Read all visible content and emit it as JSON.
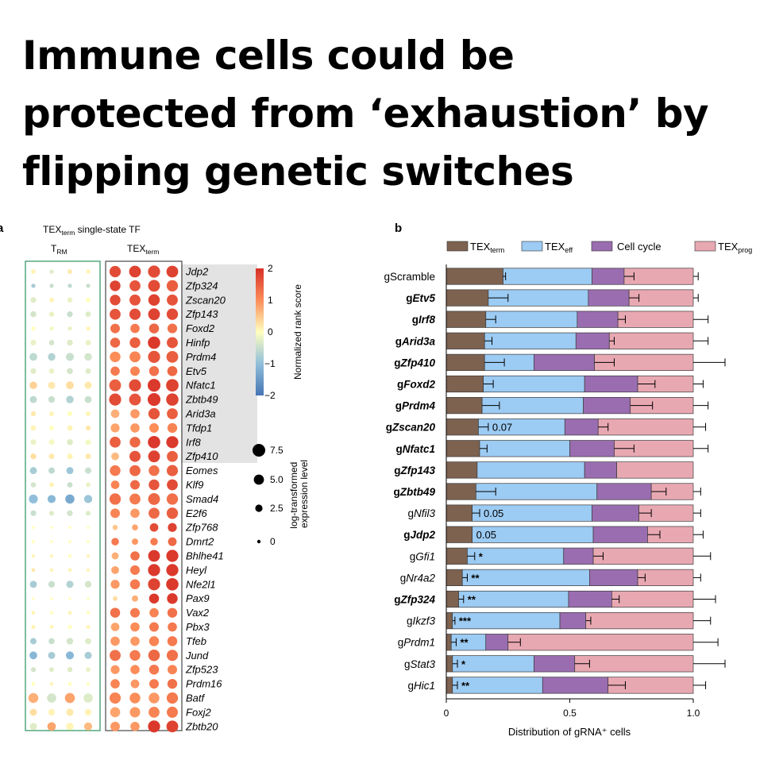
{
  "headline": {
    "line1": "Immune cells could be",
    "line2": "protected from ‘exhaustion’ by",
    "line3": "flipping genetic switches"
  },
  "panel_a": {
    "label": "a",
    "title_prefix": "TEX",
    "title_sub": "term",
    "title_suffix": " single-state TF",
    "col_group1_main": "T",
    "col_group1_sub": "RM",
    "col_group2_main": "TEX",
    "col_group2_sub": "term",
    "colorbar_title": "Normalized rank score",
    "colorbar_ticks": [
      "2",
      "1",
      "0",
      "−1",
      "−2"
    ],
    "size_title_line1": "log-transformed",
    "size_title_line2": "expression level",
    "size_ticks": [
      "7.5",
      "5.0",
      "2.5",
      "0"
    ]
  },
  "panel_b": {
    "label": "b",
    "legend": [
      {
        "main": "TEX",
        "sub": "term",
        "color": "#7d6250"
      },
      {
        "main": "TEX",
        "sub": "eff",
        "color": "#9ccbf3"
      },
      {
        "main": "Cell cycle",
        "sub": "",
        "color": "#9a6db0"
      },
      {
        "main": "TEX",
        "sub": "prog",
        "color": "#e8a8b2"
      }
    ],
    "x_ticks": [
      "0",
      "0.5",
      "1.0"
    ],
    "xlabel": "Distribution of gRNA⁺ cells"
  },
  "chart_data": [
    {
      "type": "heatmap",
      "title": "TEXterm single-state TF",
      "columns": [
        "TRM",
        "TRM",
        "TRM",
        "TRM",
        "TEXterm",
        "TEXterm",
        "TEXterm",
        "TEXterm"
      ],
      "rows": [
        "Jdp2",
        "Zfp324",
        "Zscan20",
        "Zfp143",
        "Foxd2",
        "Hinfp",
        "Prdm4",
        "Etv5",
        "Nfatc1",
        "Zbtb49",
        "Arid3a",
        "Tfdp1",
        "Irf8",
        "Zfp410",
        "Eomes",
        "Klf9",
        "Smad4",
        "E2f6",
        "Zfp768",
        "Dmrt2",
        "Bhlhe41",
        "Heyl",
        "Nfe2l1",
        "Pax9",
        "Vax2",
        "Pbx3",
        "Tfeb",
        "Jund",
        "Zfp523",
        "Prdm16",
        "Batf",
        "Foxj2",
        "Zbtb20"
      ],
      "highlighted_rows": [
        "Jdp2",
        "Zfp324",
        "Zscan20",
        "Zfp143",
        "Foxd2",
        "Hinfp",
        "Prdm4",
        "Etv5",
        "Nfatc1",
        "Zbtb49",
        "Arid3a",
        "Tfdp1",
        "Irf8",
        "Zfp410"
      ],
      "score_range": [
        -2,
        2
      ],
      "size_range": [
        0,
        7.5
      ],
      "score": [
        [
          0.1,
          -0.3,
          0.2,
          0.1,
          1.7,
          1.8,
          1.7,
          1.8
        ],
        [
          -0.8,
          -0.5,
          -0.6,
          -0.5,
          1.8,
          1.6,
          1.7,
          1.5
        ],
        [
          -0.3,
          0.1,
          -0.2,
          0.0,
          1.7,
          1.6,
          1.8,
          1.6
        ],
        [
          -0.4,
          -0.2,
          -0.5,
          -0.3,
          1.6,
          1.7,
          1.8,
          1.7
        ],
        [
          0.0,
          -0.1,
          -0.2,
          0.1,
          1.3,
          1.2,
          1.4,
          1.3
        ],
        [
          -0.2,
          -0.4,
          -0.3,
          -0.2,
          1.4,
          1.5,
          1.9,
          1.6
        ],
        [
          -0.6,
          -0.7,
          -0.5,
          -0.4,
          1.0,
          1.1,
          1.6,
          1.5
        ],
        [
          -0.3,
          -0.2,
          -0.4,
          -0.3,
          1.2,
          1.1,
          1.3,
          1.4
        ],
        [
          0.4,
          0.2,
          0.3,
          0.2,
          1.5,
          1.7,
          1.9,
          1.8
        ],
        [
          -0.6,
          -0.5,
          -0.7,
          -0.5,
          1.7,
          1.6,
          1.9,
          1.8
        ],
        [
          0.2,
          0.1,
          0.0,
          0.1,
          0.7,
          0.9,
          1.6,
          1.5
        ],
        [
          0.1,
          0.0,
          0.1,
          0.2,
          0.8,
          0.9,
          1.0,
          1.1
        ],
        [
          -0.2,
          -0.1,
          -0.3,
          -0.1,
          1.5,
          1.4,
          1.9,
          1.9
        ],
        [
          0.3,
          0.2,
          0.1,
          0.2,
          0.6,
          1.6,
          1.8,
          1.5
        ],
        [
          -0.8,
          -0.6,
          -0.9,
          -0.5,
          1.2,
          1.4,
          1.3,
          1.5
        ],
        [
          -0.4,
          0.1,
          -0.5,
          -0.2,
          1.1,
          1.4,
          1.6,
          1.7
        ],
        [
          -1.0,
          -1.1,
          -1.3,
          -0.9,
          1.3,
          1.2,
          1.4,
          1.3
        ],
        [
          -0.5,
          -0.3,
          -0.4,
          -0.3,
          1.1,
          0.9,
          1.4,
          1.5
        ],
        [
          0.0,
          0.0,
          0.0,
          0.0,
          0.5,
          0.8,
          1.7,
          1.8
        ],
        [
          0.0,
          0.0,
          0.0,
          0.0,
          1.2,
          0.9,
          1.2,
          1.4
        ],
        [
          0.1,
          0.1,
          0.0,
          0.1,
          0.7,
          1.3,
          1.9,
          1.9
        ],
        [
          0.2,
          0.1,
          0.1,
          0.1,
          0.8,
          1.2,
          1.9,
          1.9
        ],
        [
          -0.8,
          -0.5,
          -0.7,
          -0.4,
          0.9,
          1.2,
          1.8,
          1.9
        ],
        [
          0.0,
          0.0,
          0.0,
          0.0,
          0.3,
          0.7,
          1.9,
          1.9
        ],
        [
          0.1,
          0.0,
          0.1,
          0.0,
          1.3,
          1.2,
          1.1,
          1.3
        ],
        [
          0.1,
          0.1,
          0.0,
          0.1,
          0.8,
          1.0,
          1.2,
          1.2
        ],
        [
          -0.8,
          -0.5,
          -0.4,
          -0.3,
          0.9,
          0.9,
          1.1,
          1.2
        ],
        [
          -1.1,
          -0.8,
          -1.1,
          -0.8,
          1.3,
          1.2,
          1.4,
          1.3
        ],
        [
          -0.4,
          -0.3,
          -0.3,
          -0.2,
          0.9,
          1.0,
          1.2,
          1.1
        ],
        [
          0.0,
          0.1,
          0.0,
          0.0,
          1.1,
          0.9,
          1.2,
          1.3
        ],
        [
          0.7,
          -0.4,
          0.8,
          -0.3,
          1.1,
          1.0,
          0.9,
          1.2
        ],
        [
          0.3,
          0.1,
          0.2,
          0.1,
          0.8,
          0.9,
          1.1,
          1.2
        ],
        [
          -0.3,
          0.8,
          0.1,
          0.6,
          0.9,
          0.9,
          1.9,
          1.8
        ]
      ],
      "expression": [
        [
          1.8,
          1.5,
          1.8,
          1.6,
          6.5,
          6.8,
          7.0,
          6.8
        ],
        [
          1.5,
          1.5,
          1.5,
          1.5,
          6.0,
          6.2,
          6.8,
          6.5
        ],
        [
          2.5,
          1.8,
          2.2,
          2.0,
          6.0,
          6.3,
          6.6,
          6.3
        ],
        [
          2.8,
          2.2,
          2.6,
          2.4,
          6.2,
          6.4,
          6.8,
          6.5
        ],
        [
          1.5,
          1.5,
          1.5,
          1.5,
          5.2,
          5.0,
          5.5,
          5.3
        ],
        [
          2.6,
          2.3,
          2.7,
          2.4,
          5.5,
          6.0,
          7.2,
          6.3
        ],
        [
          4.0,
          3.8,
          4.2,
          3.8,
          6.0,
          6.2,
          7.0,
          6.8
        ],
        [
          2.5,
          2.2,
          2.8,
          2.4,
          5.0,
          5.2,
          5.5,
          5.6
        ],
        [
          3.8,
          3.5,
          4.0,
          3.6,
          6.8,
          7.0,
          7.5,
          7.3
        ],
        [
          3.5,
          3.2,
          3.8,
          3.4,
          7.0,
          6.8,
          7.5,
          7.2
        ],
        [
          2.0,
          1.8,
          2.0,
          1.8,
          4.5,
          5.0,
          6.5,
          6.2
        ],
        [
          2.2,
          2.0,
          2.3,
          2.1,
          4.8,
          5.0,
          5.2,
          5.4
        ],
        [
          2.5,
          2.5,
          2.8,
          2.5,
          6.2,
          6.0,
          7.2,
          7.0
        ],
        [
          2.6,
          2.4,
          2.5,
          2.4,
          4.0,
          6.3,
          6.8,
          6.2
        ],
        [
          3.5,
          3.0,
          3.5,
          3.0,
          6.0,
          6.2,
          6.0,
          6.4
        ],
        [
          2.2,
          1.8,
          2.3,
          1.8,
          4.5,
          5.2,
          6.0,
          6.2
        ],
        [
          4.8,
          4.2,
          5.0,
          4.3,
          6.5,
          6.2,
          6.8,
          6.5
        ],
        [
          2.5,
          2.0,
          2.6,
          2.0,
          5.2,
          5.0,
          6.2,
          6.5
        ],
        [
          0.6,
          0.5,
          0.6,
          0.5,
          2.2,
          2.8,
          4.5,
          4.8
        ],
        [
          0.8,
          0.6,
          0.8,
          0.6,
          3.8,
          3.0,
          3.8,
          4.6
        ],
        [
          1.0,
          0.8,
          1.0,
          0.9,
          3.5,
          5.0,
          6.8,
          7.0
        ],
        [
          1.2,
          1.0,
          1.2,
          1.0,
          4.0,
          5.2,
          7.0,
          7.0
        ],
        [
          3.5,
          3.2,
          3.6,
          3.2,
          4.8,
          5.5,
          7.0,
          7.2
        ],
        [
          0.5,
          0.5,
          0.5,
          0.5,
          1.8,
          3.0,
          5.5,
          6.0
        ],
        [
          1.2,
          1.0,
          1.3,
          1.0,
          5.5,
          5.2,
          5.0,
          5.4
        ],
        [
          1.5,
          1.3,
          1.6,
          1.4,
          4.5,
          5.0,
          5.2,
          5.0
        ],
        [
          3.0,
          2.8,
          3.2,
          2.8,
          5.0,
          5.0,
          5.5,
          5.5
        ],
        [
          4.0,
          3.5,
          4.2,
          3.6,
          6.3,
          6.0,
          6.6,
          6.4
        ],
        [
          2.0,
          1.8,
          2.2,
          1.8,
          4.8,
          5.0,
          5.5,
          5.2
        ],
        [
          1.2,
          1.0,
          1.2,
          1.0,
          5.0,
          4.6,
          5.2,
          5.4
        ],
        [
          5.5,
          5.0,
          5.6,
          5.0,
          6.4,
          6.0,
          6.0,
          6.5
        ],
        [
          3.5,
          3.2,
          3.6,
          3.2,
          5.6,
          5.8,
          6.2,
          6.3
        ],
        [
          3.5,
          4.5,
          3.8,
          4.2,
          5.2,
          5.0,
          7.0,
          6.8
        ]
      ]
    },
    {
      "type": "bar",
      "orientation": "horizontal",
      "stacked": true,
      "xlabel": "Distribution of gRNA⁺ cells",
      "xlim": [
        0,
        1.0
      ],
      "legend_position": "top",
      "categories": [
        "gScramble",
        "gEtv5",
        "gIrf8",
        "gArid3a",
        "gZfp410",
        "gFoxd2",
        "gPrdm4",
        "gZscan20",
        "gNfatc1",
        "gZfp143",
        "gZbtb49",
        "gNfil3",
        "gJdp2",
        "gGfi1",
        "gNr4a2",
        "gZfp324",
        "gIkzf3",
        "gPrdm1",
        "gStat3",
        "gHic1"
      ],
      "bold_categories": [
        "gEtv5",
        "gIrf8",
        "gArid3a",
        "gZfp410",
        "gFoxd2",
        "gPrdm4",
        "gZscan20",
        "gNfatc1",
        "gZfp143",
        "gZbtb49",
        "gJdp2",
        "gZfp324"
      ],
      "series": [
        {
          "name": "TEXterm",
          "color": "#7d6250",
          "values": [
            0.23,
            0.17,
            0.16,
            0.155,
            0.155,
            0.15,
            0.145,
            0.13,
            0.135,
            0.125,
            0.12,
            0.105,
            0.105,
            0.085,
            0.065,
            0.05,
            0.025,
            0.02,
            0.025,
            0.025
          ]
        },
        {
          "name": "TEXeff",
          "color": "#9ccbf3",
          "values": [
            0.36,
            0.405,
            0.37,
            0.37,
            0.2,
            0.41,
            0.41,
            0.35,
            0.365,
            0.435,
            0.49,
            0.485,
            0.49,
            0.39,
            0.515,
            0.445,
            0.435,
            0.14,
            0.33,
            0.365
          ]
        },
        {
          "name": "Cell cycle",
          "color": "#9a6db0",
          "values": [
            0.13,
            0.165,
            0.165,
            0.135,
            0.245,
            0.215,
            0.19,
            0.135,
            0.18,
            0.13,
            0.22,
            0.19,
            0.22,
            0.12,
            0.195,
            0.175,
            0.105,
            0.09,
            0.165,
            0.265
          ]
        },
        {
          "name": "TEXprog",
          "color": "#e8a8b2",
          "values": [
            0.28,
            0.26,
            0.305,
            0.34,
            0.4,
            0.225,
            0.255,
            0.385,
            0.32,
            0.31,
            0.17,
            0.22,
            0.185,
            0.405,
            0.225,
            0.33,
            0.435,
            0.75,
            0.48,
            0.345
          ]
        }
      ],
      "error_bars": {
        "TEXterm": [
          0.01,
          0.08,
          0.04,
          0.03,
          0.08,
          0.04,
          0.07,
          0.04,
          0.03,
          0.0,
          0.08,
          0.03,
          0.0,
          0.03,
          0.02,
          0.02,
          0.01,
          0.02,
          0.02,
          0.02
        ],
        "Cell cycle": [
          0.04,
          0.04,
          0.03,
          0.02,
          0.08,
          0.07,
          0.09,
          0.04,
          0.08,
          0.0,
          0.06,
          0.05,
          0.05,
          0.04,
          0.03,
          0.03,
          0.02,
          0.05,
          0.06,
          0.07
        ],
        "TEXprog": [
          0.02,
          0.02,
          0.06,
          0.06,
          0.17,
          0.04,
          0.06,
          0.05,
          0.06,
          0.0,
          0.03,
          0.03,
          0.04,
          0.07,
          0.03,
          0.09,
          0.07,
          0.1,
          0.13,
          0.05
        ]
      },
      "annotations": [
        "",
        "",
        "",
        "",
        "",
        "",
        "",
        "0.07",
        "",
        "",
        "",
        "0.05",
        "0.05",
        "*",
        "**",
        "**",
        "***",
        "**",
        "*",
        "**"
      ]
    }
  ]
}
